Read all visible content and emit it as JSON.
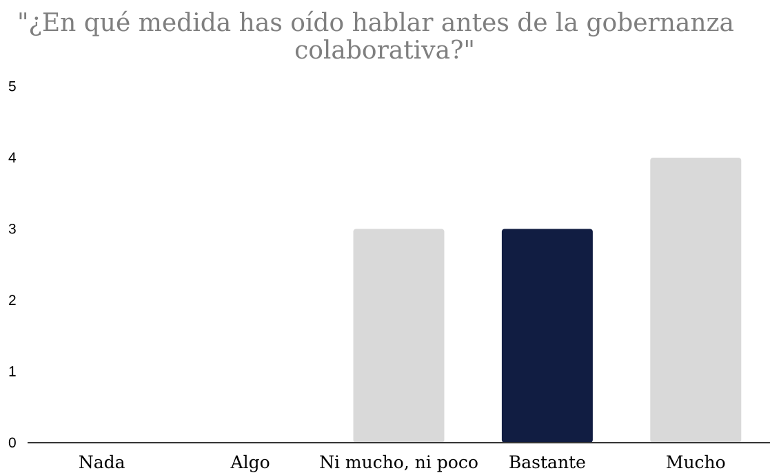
{
  "chart_data": {
    "type": "bar",
    "title_lines": [
      "\"¿En qué medida has oído hablar antes de la gobernanza",
      "colaborativa?\""
    ],
    "xlabel": "",
    "ylabel": "",
    "categories": [
      "Nada",
      "Algo",
      "Ni mucho, ni poco",
      "Bastante",
      "Mucho"
    ],
    "values": [
      0,
      0,
      3,
      3,
      4
    ],
    "ylim": [
      0,
      5
    ],
    "yticks": [
      0,
      1,
      2,
      3,
      4,
      5
    ],
    "grid": false,
    "legend": "none",
    "colors": {
      "bar_default": "#d9d9d9",
      "bar_highlight": "#111d42",
      "axis": "#333333",
      "title": "#7f7f7f"
    },
    "highlight_category": "Bastante"
  }
}
